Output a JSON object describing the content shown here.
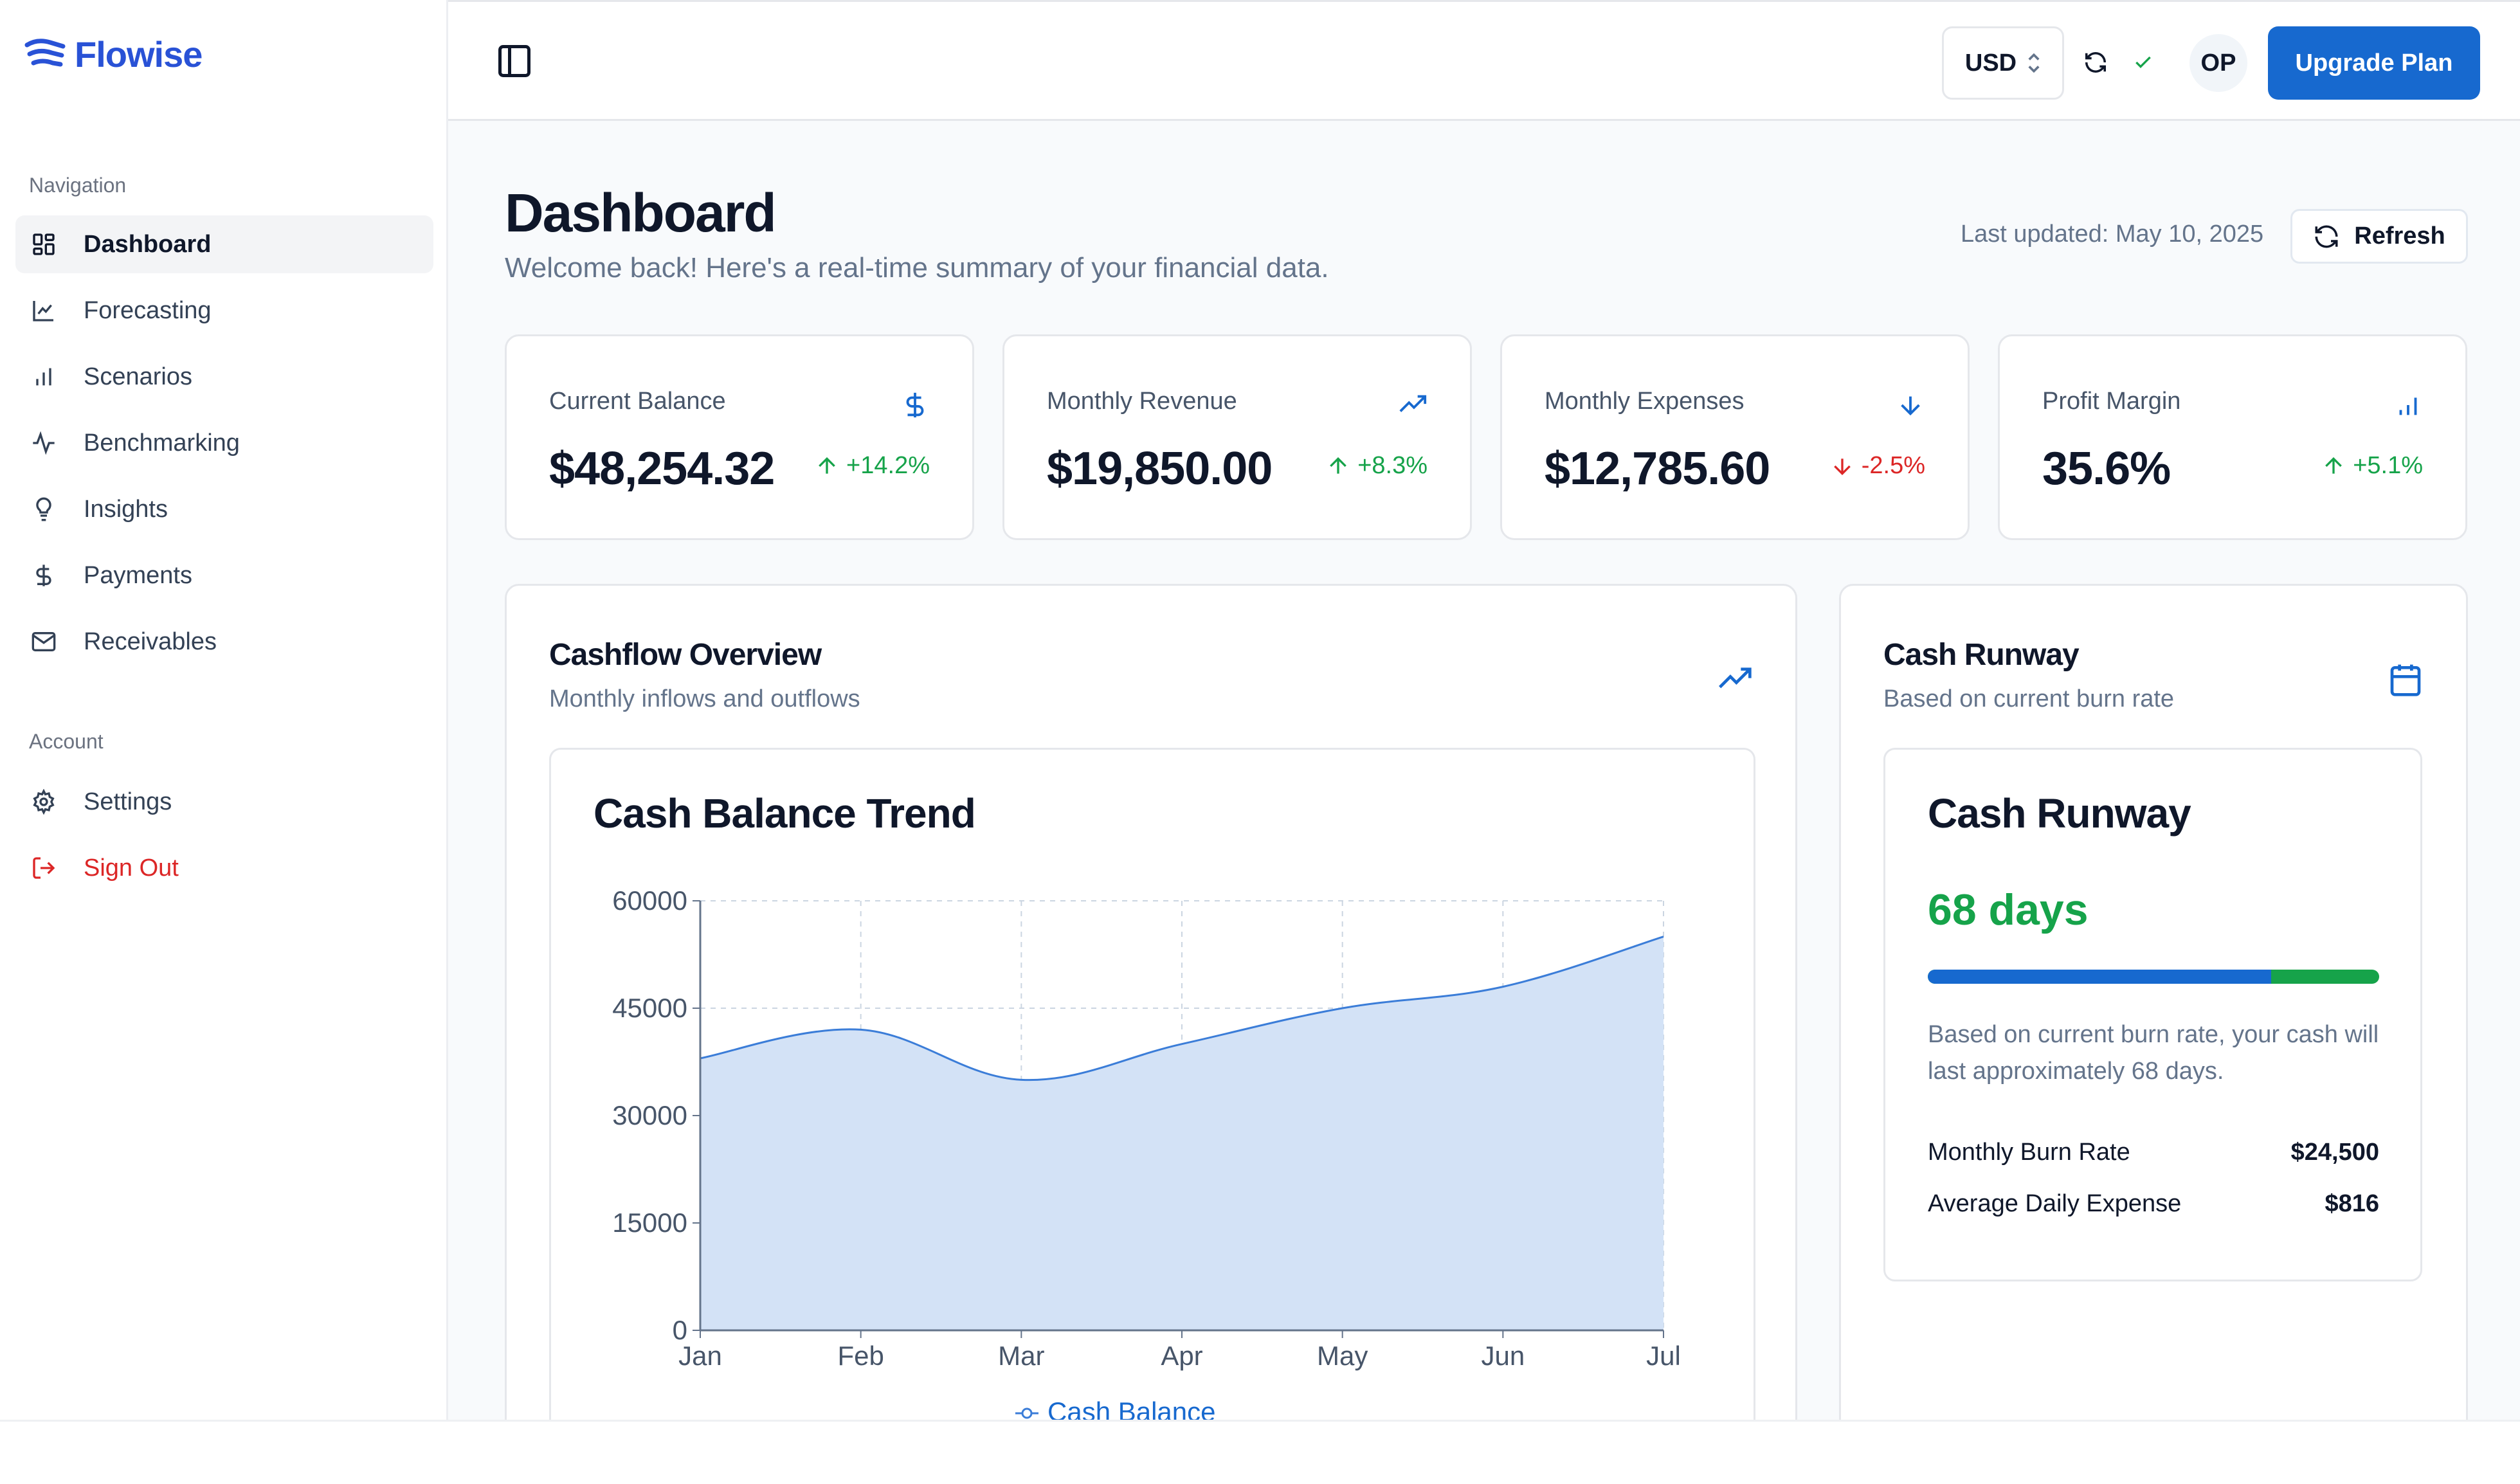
{
  "brand": {
    "name": "Flowise"
  },
  "sidebar": {
    "nav_label": "Navigation",
    "nav_items": [
      {
        "label": "Dashboard",
        "icon": "dashboard-icon",
        "active": true
      },
      {
        "label": "Forecasting",
        "icon": "line-chart-icon"
      },
      {
        "label": "Scenarios",
        "icon": "bar-chart-icon"
      },
      {
        "label": "Benchmarking",
        "icon": "activity-icon"
      },
      {
        "label": "Insights",
        "icon": "lightbulb-icon"
      },
      {
        "label": "Payments",
        "icon": "dollar-icon"
      },
      {
        "label": "Receivables",
        "icon": "mail-icon"
      }
    ],
    "account_label": "Account",
    "account_items": [
      {
        "label": "Settings",
        "icon": "gear-icon"
      },
      {
        "label": "Sign Out",
        "icon": "sign-out-icon",
        "color": "#dc2626"
      }
    ]
  },
  "topbar": {
    "currency": "USD",
    "avatar_initials": "OP",
    "upgrade_label": "Upgrade Plan"
  },
  "header": {
    "title": "Dashboard",
    "subtitle": "Welcome back! Here's a real-time summary of your financial data.",
    "last_updated": "Last updated: May 10, 2025",
    "refresh_label": "Refresh"
  },
  "stats": [
    {
      "label": "Current Balance",
      "value": "$48,254.32",
      "delta": "+14.2%",
      "direction": "up",
      "icon": "dollar-icon"
    },
    {
      "label": "Monthly Revenue",
      "value": "$19,850.00",
      "delta": "+8.3%",
      "direction": "up",
      "icon": "trending-up-icon"
    },
    {
      "label": "Monthly Expenses",
      "value": "$12,785.60",
      "delta": "-2.5%",
      "direction": "down",
      "icon": "arrow-down-icon"
    },
    {
      "label": "Profit Margin",
      "value": "35.6%",
      "delta": "+5.1%",
      "direction": "up",
      "icon": "bar-chart-icon"
    }
  ],
  "cashflow": {
    "title": "Cashflow Overview",
    "subtitle": "Monthly inflows and outflows",
    "chart_title": "Cash Balance Trend"
  },
  "chart_data": {
    "type": "area",
    "title": "Cash Balance Trend",
    "x": [
      "Jan",
      "Feb",
      "Mar",
      "Apr",
      "May",
      "Jun",
      "Jul"
    ],
    "series": [
      {
        "name": "Cash Balance",
        "values": [
          38000,
          42000,
          35000,
          40000,
          45000,
          48000,
          55000
        ],
        "color": "#3b7dd8"
      }
    ],
    "yticks": [
      0,
      15000,
      30000,
      45000,
      60000
    ],
    "ylim": [
      0,
      60000
    ],
    "grid": true,
    "legend": "bottom"
  },
  "runway": {
    "title": "Cash Runway",
    "subtitle": "Based on current burn rate",
    "inner_title": "Cash Runway",
    "days": "68 days",
    "progress": 0.76,
    "description": "Based on current burn rate, your cash will last approximately 68 days.",
    "burn_label": "Monthly Burn Rate",
    "burn_value": "$24,500",
    "daily_label": "Average Daily Expense",
    "daily_value": "$816"
  },
  "colors": {
    "accent": "#1769cf",
    "positive": "#16a34a",
    "negative": "#dc2626",
    "brand": "#2952d6"
  }
}
